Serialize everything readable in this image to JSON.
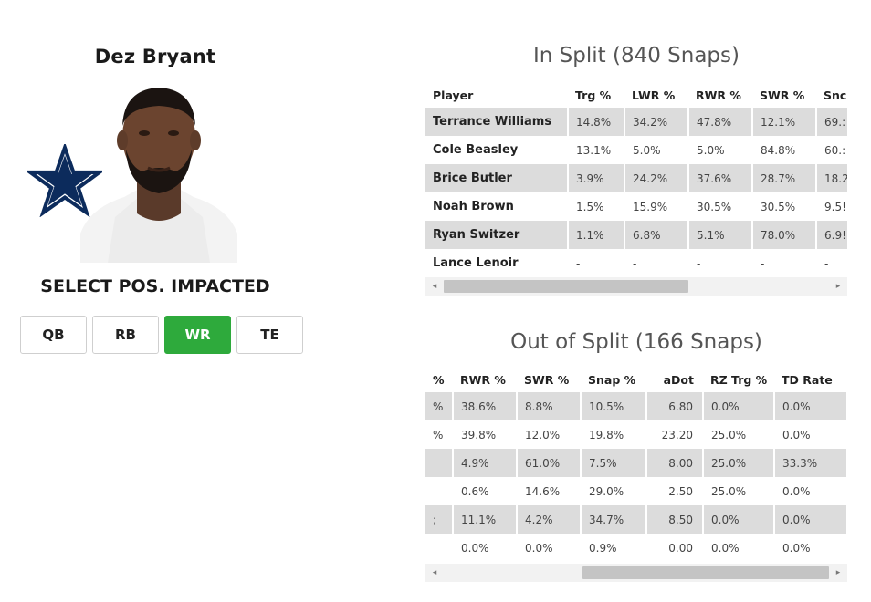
{
  "player": {
    "name": "Dez Bryant"
  },
  "positions": {
    "title": "SELECT POS. IMPACTED",
    "options": [
      "QB",
      "RB",
      "WR",
      "TE"
    ],
    "selected": "WR"
  },
  "in_split": {
    "title": "In Split (840 Snaps)",
    "headers": [
      "Player",
      "Trg %",
      "LWR %",
      "RWR %",
      "SWR %",
      "Snc"
    ],
    "rows": [
      [
        "Terrance Williams",
        "14.8%",
        "34.2%",
        "47.8%",
        "12.1%",
        "69.:"
      ],
      [
        "Cole Beasley",
        "13.1%",
        "5.0%",
        "5.0%",
        "84.8%",
        "60.:"
      ],
      [
        "Brice Butler",
        "3.9%",
        "24.2%",
        "37.6%",
        "28.7%",
        "18.2"
      ],
      [
        "Noah Brown",
        "1.5%",
        "15.9%",
        "30.5%",
        "30.5%",
        "9.5!"
      ],
      [
        "Ryan Switzer",
        "1.1%",
        "6.8%",
        "5.1%",
        "78.0%",
        "6.9!"
      ],
      [
        "Lance Lenoir",
        "-",
        "-",
        "-",
        "-",
        "-"
      ]
    ]
  },
  "out_split": {
    "title": "Out of Split (166 Snaps)",
    "headers": [
      "%",
      "RWR %",
      "SWR %",
      "Snap %",
      "aDot",
      "RZ Trg %",
      "TD Rate"
    ],
    "rows": [
      [
        "%",
        "38.6%",
        "8.8%",
        "10.5%",
        "6.80",
        "0.0%",
        "0.0%"
      ],
      [
        "%",
        "39.8%",
        "12.0%",
        "19.8%",
        "23.20",
        "25.0%",
        "0.0%"
      ],
      [
        "",
        "4.9%",
        "61.0%",
        "7.5%",
        "8.00",
        "25.0%",
        "33.3%"
      ],
      [
        "",
        "0.6%",
        "14.6%",
        "29.0%",
        "2.50",
        "25.0%",
        "0.0%"
      ],
      [
        ";",
        "11.1%",
        "4.2%",
        "34.7%",
        "8.50",
        "0.0%",
        "0.0%"
      ],
      [
        "",
        "0.0%",
        "0.0%",
        "0.9%",
        "0.00",
        "0.0%",
        "0.0%"
      ]
    ]
  },
  "scrollbar": {
    "left_arrow": "◂",
    "right_arrow": "▸"
  },
  "colors": {
    "accent": "#2eaa3c",
    "star": "#0c2b5c",
    "row_shade": "#dcdcdc"
  }
}
